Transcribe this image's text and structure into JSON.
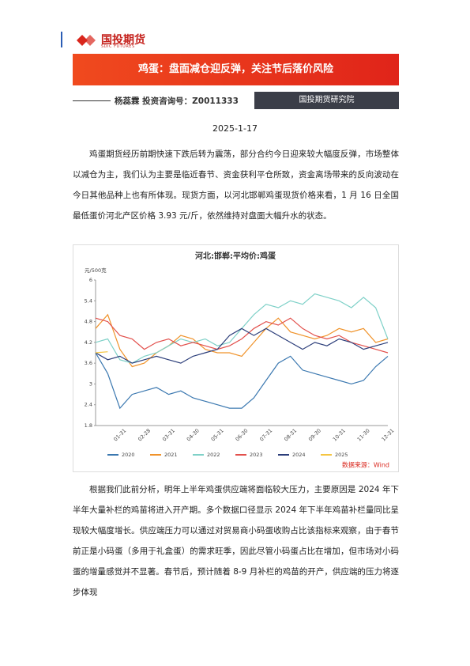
{
  "header": {
    "logo_cn": "国投期货",
    "logo_en": "SDIC FUTURES"
  },
  "title": "鸡蛋：盘面减仓迎反弹，关注节后落价风险",
  "author": "杨蕊霖 投资咨询号：Z0011333",
  "department": "国投期货研究院",
  "date": "2025-1-17",
  "paragraphs": [
    "鸡蛋期货经历前期快速下跌后转为震荡，部分合约今日迎来较大幅度反弹，市场整体以减仓为主，我们认为主要是临近春节、资金获利平仓所致，资金离场带来的反向波动在今日其他品种上也有所体现。现货方面，以河北邯郸鸡蛋现货价格来看，1 月 16 日全国最低蛋价河北产区价格 3.93 元/斤，依然维持对盘面大幅升水的状态。",
    "根据我们此前分析，明年上半年鸡蛋供应端将面临较大压力，主要原因是 2024 年下半年大量补栏的鸡苗将进入开产期。多个数据口径显示 2024 年下半年鸡苗补栏量同比呈现较大幅度增长。供应端压力可以通过对贸易商小码蛋收购占比该指标来观察，由于春节前正是小码蛋（多用于礼盒蛋）的需求旺季，因此尽管小码蛋占比在增加，但市场对小码蛋的增量感觉并不显著。春节后，预计随着 8-9 月补栏的鸡苗的开产，供应端的压力将逐步体现"
  ],
  "chart_data": {
    "type": "line",
    "title": "河北:邯郸:平均价:鸡蛋",
    "y_label": "元/500克",
    "source": "数据来源：Wind",
    "categories": [
      null,
      null,
      "01-31",
      null,
      "02-28",
      null,
      "03-31",
      null,
      "04-30",
      null,
      "05-31",
      null,
      "06-30",
      null,
      "07-31",
      null,
      "08-31",
      null,
      "09-30",
      null,
      "10-31",
      null,
      "11-30",
      null,
      "12-31"
    ],
    "ylim": [
      1.8,
      6
    ],
    "yticks": [
      1.8,
      2.4,
      3,
      3.6,
      4.2,
      4.8,
      5.4,
      6
    ],
    "legend": "bottom",
    "series": [
      {
        "name": "2020",
        "color": "#3b78b0",
        "values": [
          3.9,
          3.3,
          2.3,
          2.7,
          2.8,
          2.9,
          2.7,
          2.8,
          2.6,
          2.5,
          2.4,
          2.3,
          2.3,
          2.6,
          3.1,
          3.6,
          3.8,
          3.4,
          3.3,
          3.2,
          3.1,
          3.0,
          3.1,
          3.5,
          3.8
        ]
      },
      {
        "name": "2021",
        "color": "#f0932b",
        "values": [
          4.6,
          5.0,
          4.0,
          3.5,
          3.6,
          3.9,
          4.1,
          4.4,
          4.3,
          4.0,
          3.9,
          3.9,
          3.8,
          4.2,
          4.6,
          4.9,
          4.5,
          4.4,
          4.3,
          4.4,
          4.6,
          4.5,
          4.6,
          4.2,
          4.3
        ]
      },
      {
        "name": "2022",
        "color": "#7fd1c8",
        "values": [
          4.2,
          4.3,
          3.7,
          3.6,
          3.8,
          3.9,
          4.1,
          4.3,
          4.2,
          4.3,
          4.1,
          4.2,
          4.6,
          5.0,
          5.3,
          5.2,
          5.4,
          5.3,
          5.6,
          5.5,
          5.4,
          5.2,
          5.5,
          5.2,
          4.3
        ]
      },
      {
        "name": "2023",
        "color": "#e2504c",
        "values": [
          4.9,
          4.8,
          4.4,
          4.3,
          4.0,
          4.2,
          4.3,
          4.1,
          4.2,
          4.1,
          4.0,
          4.1,
          4.3,
          4.6,
          4.8,
          4.7,
          4.9,
          4.6,
          4.4,
          4.3,
          4.4,
          4.2,
          4.1,
          4.0,
          3.9
        ]
      },
      {
        "name": "2024",
        "color": "#2c3e7a",
        "values": [
          3.9,
          3.7,
          3.8,
          3.6,
          3.7,
          3.8,
          3.7,
          3.6,
          3.8,
          3.9,
          4.0,
          4.4,
          4.6,
          4.4,
          4.6,
          4.4,
          4.2,
          4.0,
          4.2,
          4.1,
          4.3,
          4.2,
          4.0,
          4.1,
          4.2
        ]
      },
      {
        "name": "2025",
        "color": "#f5c542",
        "values": [
          3.9,
          3.93,
          null,
          null,
          null,
          null,
          null,
          null,
          null,
          null,
          null,
          null,
          null,
          null,
          null,
          null,
          null,
          null,
          null,
          null,
          null,
          null,
          null,
          null,
          null
        ]
      }
    ]
  }
}
